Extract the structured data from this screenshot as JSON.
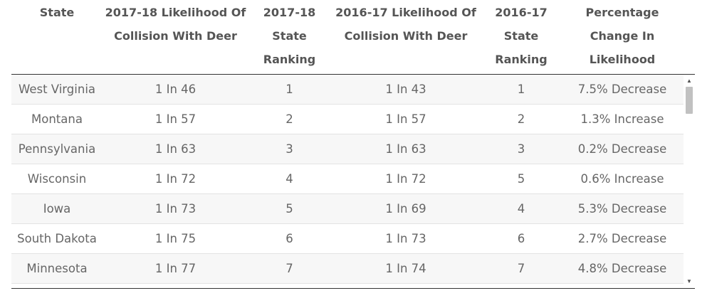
{
  "table": {
    "headers": [
      [
        "State"
      ],
      [
        "2017-18 Likelihood Of",
        "Collision With Deer"
      ],
      [
        "2017-18",
        "State",
        "Ranking"
      ],
      [
        "2016-17 Likelihood Of",
        "Collision With Deer"
      ],
      [
        "2016-17",
        "State",
        "Ranking"
      ],
      [
        "Percentage",
        "Change In",
        "Likelihood"
      ]
    ],
    "rows": [
      [
        "West Virginia",
        "1 In 46",
        "1",
        "1 In 43",
        "1",
        "7.5% Decrease"
      ],
      [
        "Montana",
        "1 In 57",
        "2",
        "1 In 57",
        "2",
        "1.3% Increase"
      ],
      [
        "Pennsylvania",
        "1 In 63",
        "3",
        "1 In 63",
        "3",
        "0.2% Decrease"
      ],
      [
        "Wisconsin",
        "1 In 72",
        "4",
        "1 In 72",
        "5",
        "0.6% Increase"
      ],
      [
        "Iowa",
        "1 In 73",
        "5",
        "1 In 69",
        "4",
        "5.3% Decrease"
      ],
      [
        "South Dakota",
        "1 In 75",
        "6",
        "1 In 73",
        "6",
        "2.7% Decrease"
      ],
      [
        "Minnesota",
        "1 In 77",
        "7",
        "1 In 74",
        "7",
        "4.8% Decrease"
      ]
    ]
  },
  "scrollbar": {
    "up_icon": "▲",
    "down_icon": "▼"
  }
}
